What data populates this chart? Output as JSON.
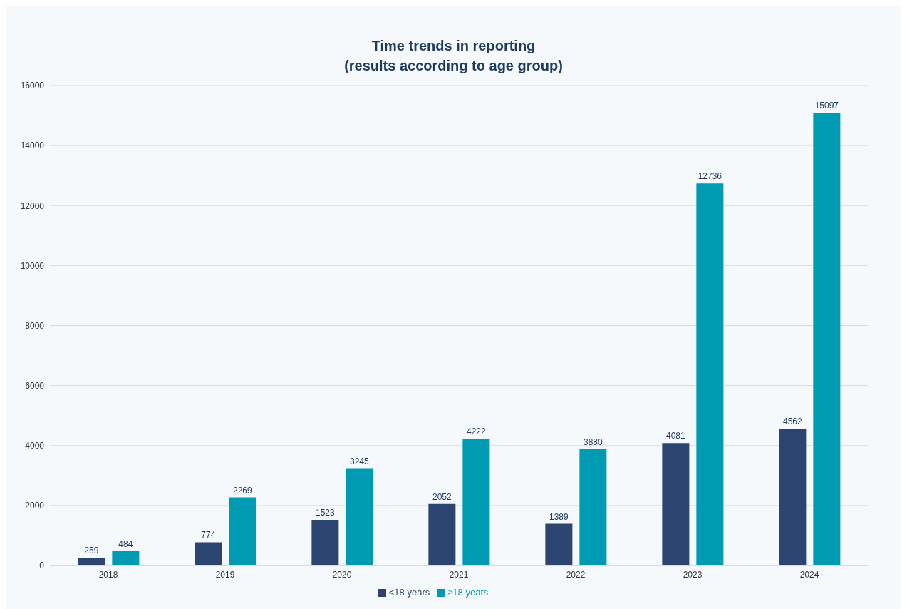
{
  "chart_data": {
    "type": "bar",
    "title": "Time trends in reporting\n(results according to age group)",
    "categories": [
      "2018",
      "2019",
      "2020",
      "2021",
      "2022",
      "2023",
      "2024"
    ],
    "series": [
      {
        "name": "<18 years",
        "color": "#2b4570",
        "values": [
          259,
          774,
          1523,
          2052,
          1389,
          4081,
          4562
        ]
      },
      {
        "name": "≥18 years",
        "color": "#009ab3",
        "values": [
          484,
          2269,
          3245,
          4222,
          3880,
          12736,
          15097
        ]
      }
    ],
    "ylim": [
      0,
      16000
    ],
    "yticks": [
      0,
      2000,
      4000,
      6000,
      8000,
      10000,
      12000,
      14000,
      16000
    ],
    "grid": "y",
    "legend": "bottom",
    "data_labels": true
  }
}
